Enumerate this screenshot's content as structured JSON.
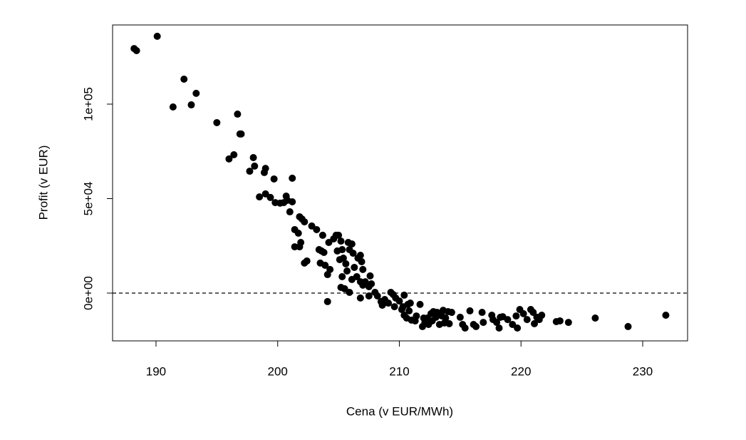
{
  "chart_data": {
    "type": "scatter",
    "xlabel": "Cena (v EUR/MWh)",
    "ylabel": "Profit (v EUR)",
    "color": "#000000",
    "x": [
      188.2,
      188.4,
      190.1,
      191.4,
      192.3,
      192.9,
      193.3,
      195.0,
      196.7,
      196.9,
      197.0,
      196.0,
      196.4,
      197.7,
      198.0,
      198.1,
      199.0,
      198.9,
      199.7,
      198.5,
      199.0,
      199.4,
      199.8,
      200.2,
      200.5,
      200.7,
      200.8,
      201.2,
      201.0,
      201.2,
      201.4,
      201.7,
      201.8,
      202.0,
      202.2,
      201.4,
      201.8,
      201.9,
      202.2,
      202.4,
      202.8,
      203.2,
      203.7,
      203.4,
      203.6,
      203.8,
      203.5,
      203.9,
      204.1,
      204.3,
      204.1,
      204.2,
      204.6,
      204.8,
      205.0,
      205.2,
      204.9,
      205.3,
      205.1,
      205.4,
      205.6,
      205.8,
      205.9,
      206.1,
      206.2,
      206.3,
      206.6,
      206.8,
      206.9,
      207.0,
      205.7,
      205.3,
      205.2,
      205.5,
      205.9,
      206.1,
      206.5,
      206.8,
      207.2,
      207.5,
      207.6,
      208.0,
      207.7,
      207.5,
      207.0,
      206.8,
      208.2,
      208.5,
      208.8,
      208.6,
      209.1,
      209.3,
      209.5,
      209.6,
      209.7,
      210.0,
      210.2,
      210.3,
      210.4,
      210.4,
      210.6,
      210.7,
      210.8,
      210.9,
      211.0,
      211.3,
      211.4,
      211.7,
      211.9,
      212.0,
      212.1,
      212.3,
      212.4,
      212.6,
      212.7,
      212.8,
      213.0,
      213.1,
      213.3,
      213.5,
      213.6,
      213.7,
      213.8,
      214.0,
      214.1,
      214.3,
      215.0,
      215.2,
      215.4,
      215.8,
      216.1,
      216.3,
      216.8,
      216.9,
      217.6,
      217.7,
      218.0,
      218.2,
      218.3,
      218.5,
      218.9,
      219.3,
      219.6,
      219.7,
      219.9,
      220.2,
      220.5,
      220.8,
      221.0,
      221.1,
      221.3,
      221.5,
      221.7,
      222.9,
      223.2,
      223.9,
      226.1,
      228.8,
      231.9
    ],
    "values": [
      129400,
      128300,
      135900,
      98500,
      113200,
      99600,
      105700,
      90200,
      94700,
      84200,
      84200,
      71000,
      73200,
      64500,
      71700,
      67200,
      66000,
      63800,
      60400,
      50900,
      52500,
      50600,
      47900,
      47600,
      47900,
      51300,
      49100,
      48300,
      43000,
      60800,
      33600,
      31700,
      40400,
      39200,
      37700,
      24500,
      24500,
      26800,
      15900,
      17000,
      35500,
      33600,
      30600,
      23000,
      22300,
      21500,
      15900,
      14700,
      9800,
      12500,
      -4500,
      26800,
      28700,
      30600,
      30600,
      27500,
      22300,
      23000,
      17700,
      18500,
      15500,
      26800,
      23000,
      26000,
      21100,
      13600,
      18500,
      20000,
      16600,
      12500,
      11700,
      8700,
      3000,
      2300,
      400,
      7200,
      8700,
      6000,
      6000,
      3400,
      9100,
      400,
      4900,
      -1500,
      4200,
      -2600,
      -1500,
      -4500,
      -3400,
      -6400,
      -5300,
      400,
      -800,
      -7200,
      -2600,
      -4200,
      -8700,
      -7200,
      -1100,
      -11700,
      -13200,
      -6000,
      -9400,
      -5300,
      -14300,
      -14700,
      -12100,
      -6000,
      -17700,
      -13200,
      -15500,
      -13200,
      -16600,
      -10900,
      -14700,
      -9800,
      -12800,
      -10200,
      -16600,
      -12100,
      -9100,
      -15800,
      -13200,
      -9800,
      -16200,
      -10200,
      -12800,
      -16600,
      -18500,
      -9400,
      -16600,
      -17700,
      -10200,
      -15500,
      -11700,
      -14000,
      -15500,
      -18500,
      -12800,
      -12500,
      -14000,
      -16600,
      -12100,
      -18500,
      -8700,
      -10900,
      -14000,
      -8700,
      -10200,
      -16200,
      -12800,
      -14000,
      -11700,
      -15100,
      -14700,
      -15500,
      -13200,
      -17700,
      -11700
    ],
    "xlim": [
      186.43,
      233.69
    ],
    "ylim": [
      -25283,
      141887
    ],
    "xticks": [
      190,
      200,
      210,
      220,
      230
    ],
    "yticks": [
      {
        "value": 0,
        "label": "0e+00"
      },
      {
        "value": 50000,
        "label": "5e+04"
      },
      {
        "value": 100000,
        "label": "1e+05"
      }
    ],
    "hline": 0
  }
}
